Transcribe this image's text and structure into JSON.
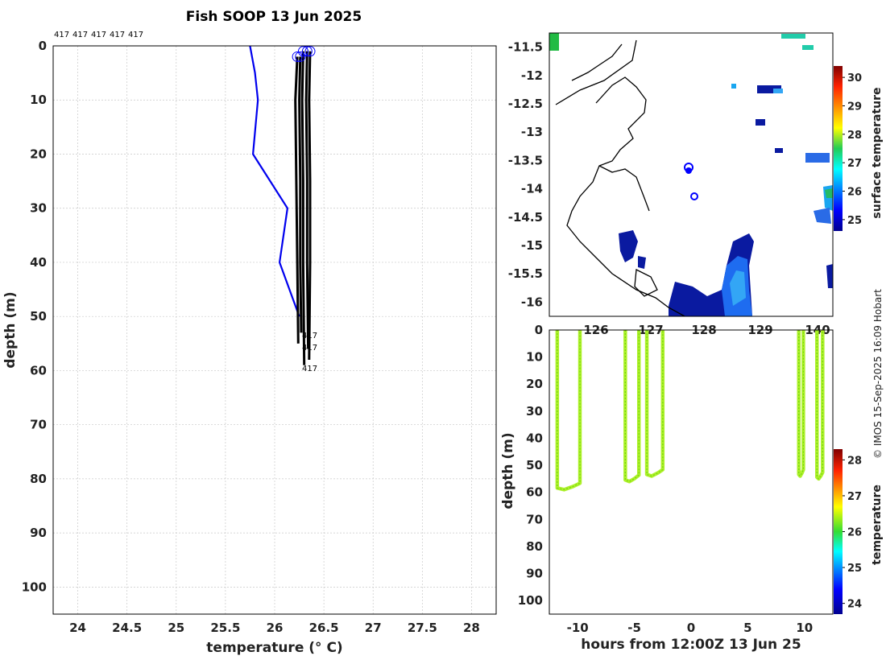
{
  "credit": "© IMOS 15-Sep-2025 16:09 Hobart",
  "chart_data": [
    {
      "type": "line",
      "name": "profile",
      "title": "Fish SOOP 13 Jun 2025",
      "xlabel": "temperature (° C)",
      "ylabel": "depth (m)",
      "xlim": [
        23.75,
        28.25
      ],
      "ylim": [
        105,
        0
      ],
      "xticks": [
        24,
        24.5,
        25,
        25.5,
        26,
        26.5,
        27,
        27.5,
        28
      ],
      "yticks": [
        0,
        10,
        20,
        30,
        40,
        50,
        60,
        70,
        80,
        90,
        100
      ],
      "top_labels": [
        "417",
        "417",
        "417",
        "417",
        "417"
      ],
      "end_labels": [
        "417",
        "417",
        "417"
      ],
      "series": [
        {
          "name": "climatology",
          "color": "#0000ee",
          "points": [
            [
              25.75,
              0
            ],
            [
              25.8,
              5
            ],
            [
              25.83,
              10
            ],
            [
              25.78,
              20
            ],
            [
              26.13,
              30
            ],
            [
              26.05,
              40
            ],
            [
              26.25,
              50
            ]
          ]
        },
        {
          "name": "profile-1",
          "color": "#000000",
          "points": [
            [
              26.23,
              2
            ],
            [
              26.21,
              10
            ],
            [
              26.22,
              25
            ],
            [
              26.23,
              40
            ],
            [
              26.24,
              55
            ]
          ]
        },
        {
          "name": "profile-2",
          "color": "#000000",
          "points": [
            [
              26.26,
              2
            ],
            [
              26.25,
              10
            ],
            [
              26.26,
              25
            ],
            [
              26.26,
              40
            ],
            [
              26.27,
              53
            ]
          ]
        },
        {
          "name": "profile-3",
          "color": "#000000",
          "points": [
            [
              26.29,
              1
            ],
            [
              26.28,
              10
            ],
            [
              26.29,
              25
            ],
            [
              26.29,
              40
            ],
            [
              26.3,
              59
            ]
          ]
        },
        {
          "name": "profile-4",
          "color": "#000000",
          "points": [
            [
              26.33,
              1
            ],
            [
              26.32,
              10
            ],
            [
              26.33,
              25
            ],
            [
              26.33,
              40
            ],
            [
              26.34,
              56
            ]
          ]
        },
        {
          "name": "profile-5",
          "color": "#000000",
          "points": [
            [
              26.36,
              1
            ],
            [
              26.35,
              10
            ],
            [
              26.36,
              25
            ],
            [
              26.36,
              40
            ],
            [
              26.35,
              58
            ]
          ]
        }
      ]
    },
    {
      "type": "heatmap",
      "name": "map",
      "xlim": [
        125.25,
        140.4
      ],
      "ylim": [
        -16.25,
        -11.25
      ],
      "xticks": [
        126,
        127,
        128,
        129,
        140
      ],
      "yticks": [
        -11.5,
        -12,
        -12.5,
        -13,
        -13.5,
        -14,
        -14.5,
        -15,
        -15.5,
        -16
      ],
      "colorbar": {
        "label": "surface temperature",
        "range": [
          24.6,
          30.4
        ],
        "ticks": [
          25,
          26,
          27,
          28,
          29,
          30
        ]
      },
      "markers": [
        [
          127.7,
          -13.6
        ],
        [
          127.75,
          -14.1
        ]
      ]
    },
    {
      "type": "scatter",
      "name": "time-depth",
      "xlabel": "hours from 12:00Z 13 Jun 25",
      "ylabel": "depth (m)",
      "xlim": [
        -12.5,
        12.5
      ],
      "ylim": [
        105,
        0
      ],
      "xticks": [
        -10,
        -5,
        0,
        5,
        10
      ],
      "yticks": [
        0,
        10,
        20,
        30,
        40,
        50,
        60,
        70,
        80,
        90,
        100
      ],
      "colorbar": {
        "label": "temperature",
        "range": [
          23.7,
          28.3
        ],
        "ticks": [
          24,
          25,
          26,
          27,
          28
        ]
      },
      "casts": [
        {
          "x_down": -11.8,
          "x_up": -9.8,
          "max_depth": 59
        },
        {
          "x_down": -5.8,
          "x_up": -4.6,
          "max_depth": 56
        },
        {
          "x_down": -3.9,
          "x_up": -2.5,
          "max_depth": 54
        },
        {
          "x_down": 9.5,
          "x_up": 9.9,
          "max_depth": 54
        },
        {
          "x_down": 11.1,
          "x_up": 11.6,
          "max_depth": 55
        }
      ]
    }
  ]
}
